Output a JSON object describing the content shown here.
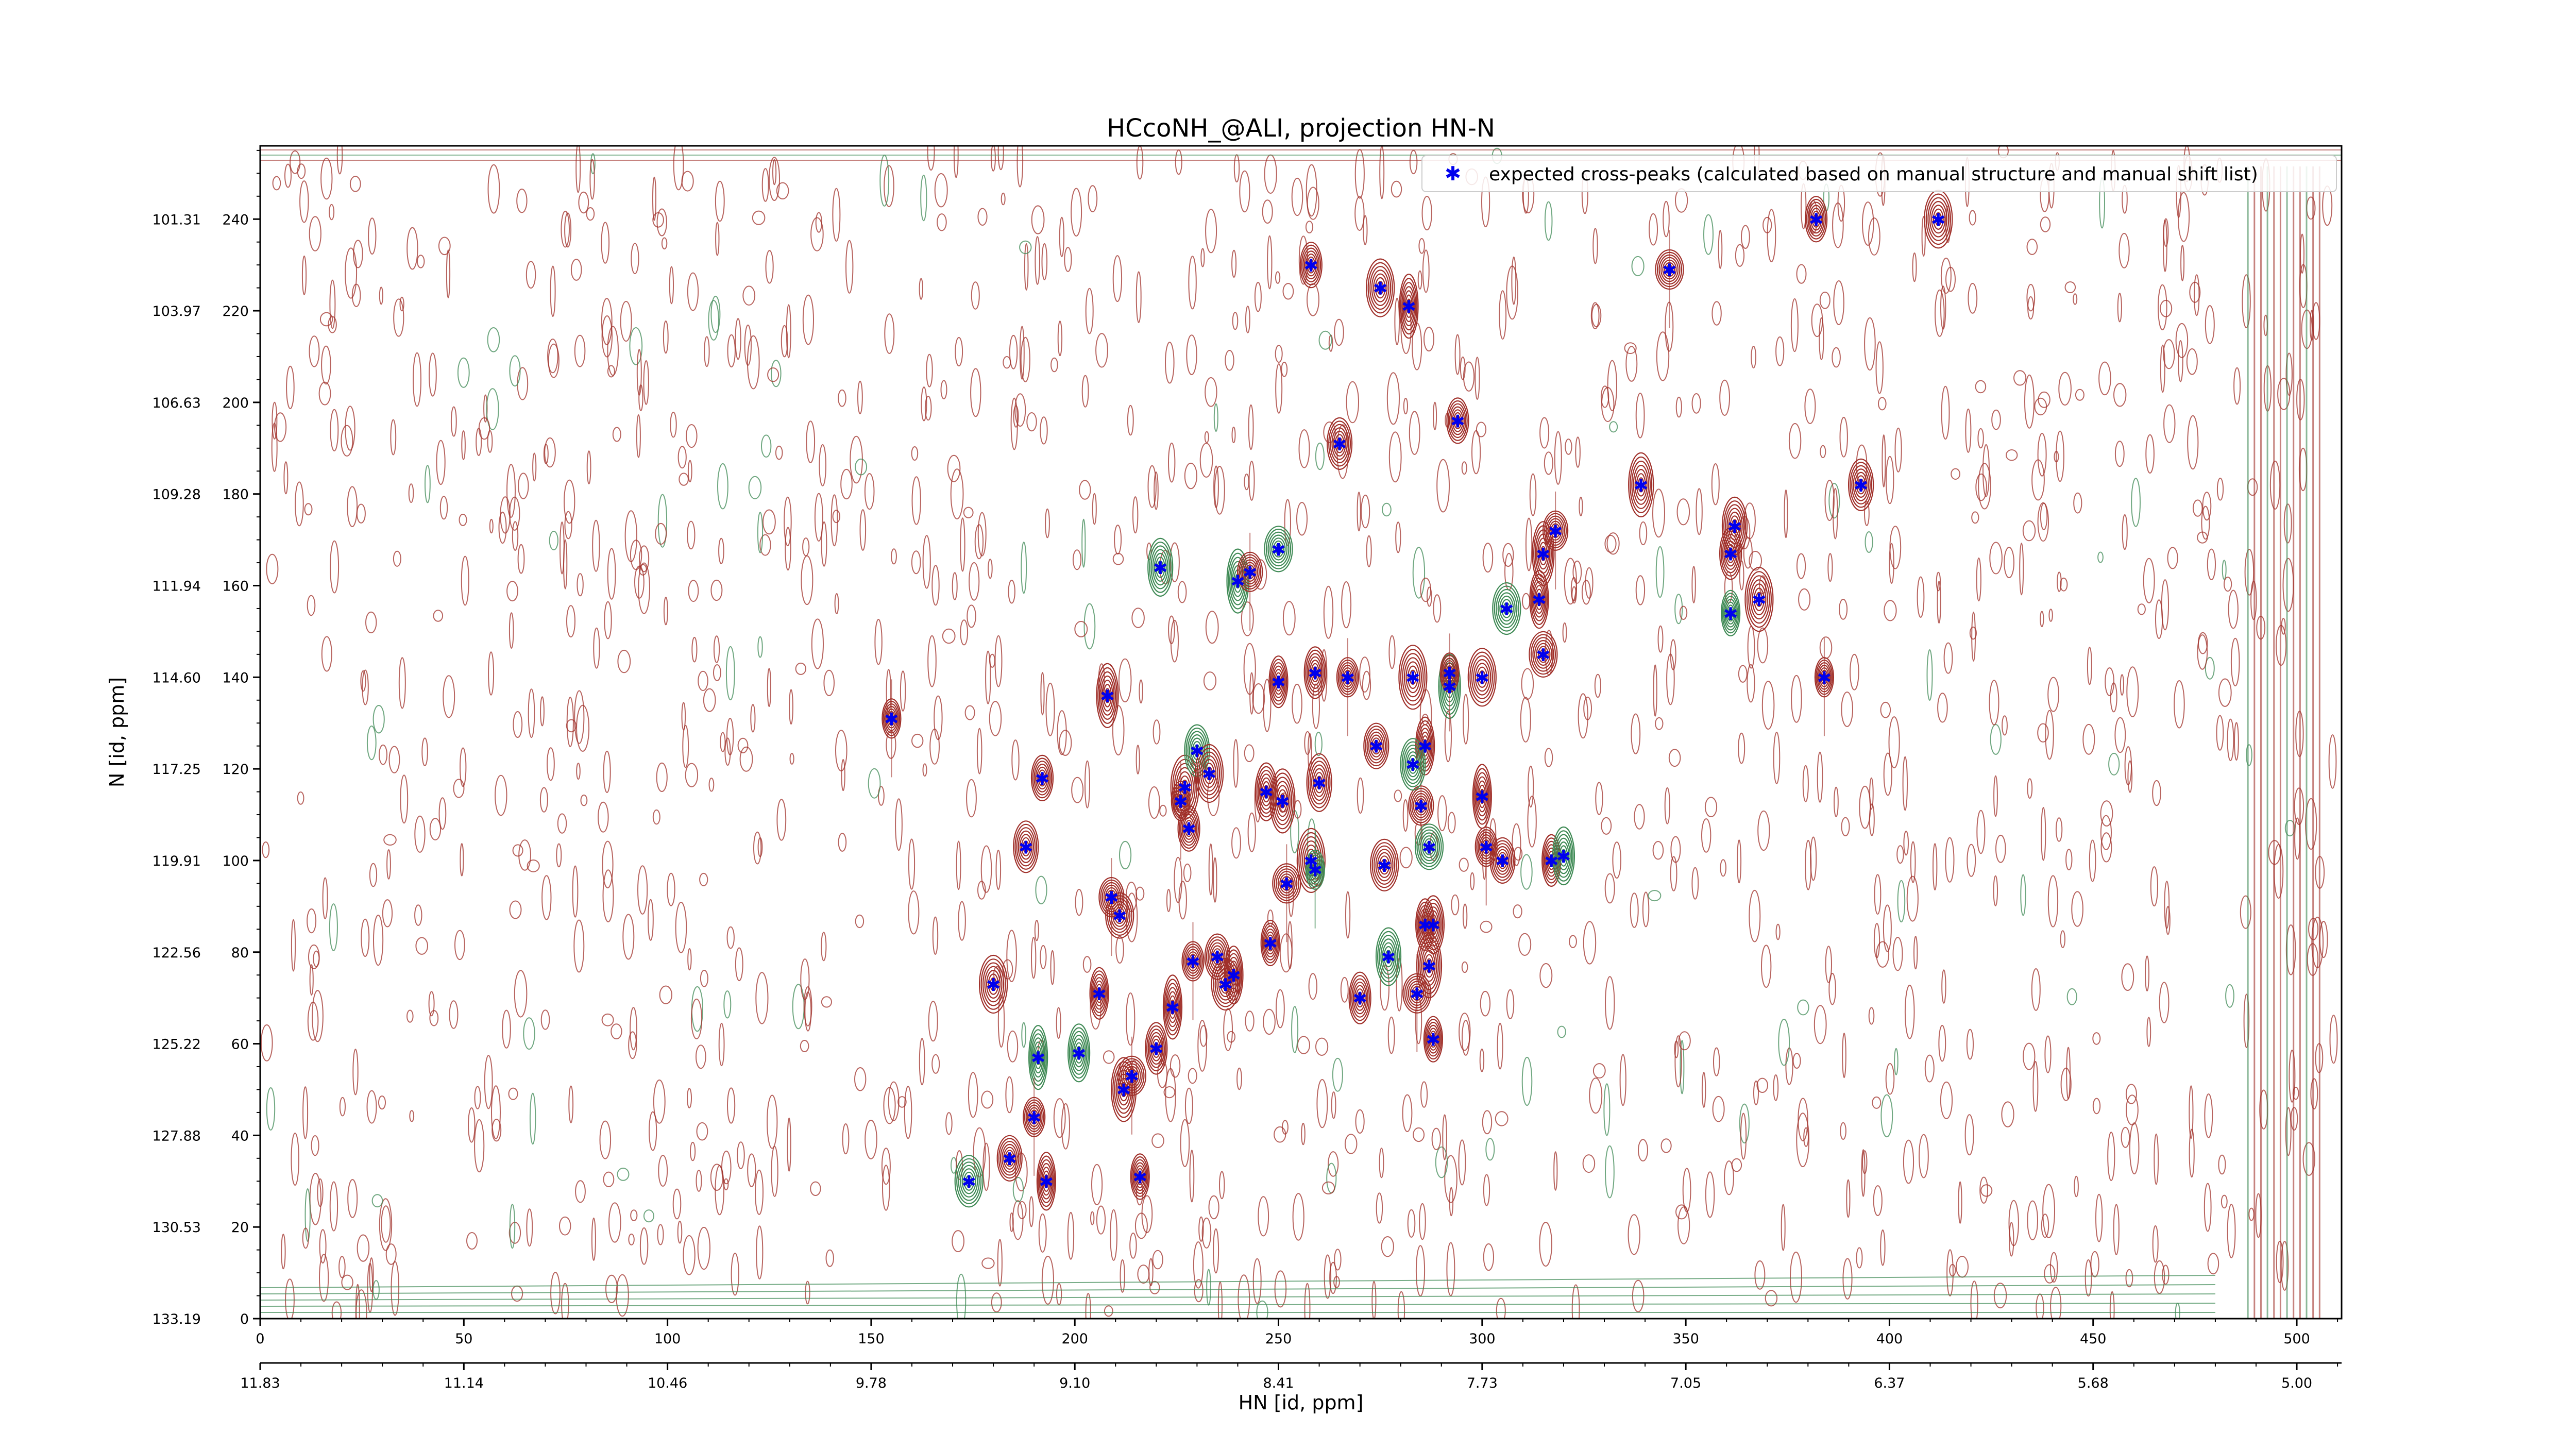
{
  "chart_data": {
    "type": "scatter",
    "title": "HCcoNH_@ALI, projection HN-N",
    "xlabel": "HN [id, ppm]",
    "ylabel": "N [id, ppm]",
    "xlim": [
      0,
      511
    ],
    "ylim": [
      0,
      256
    ],
    "grid": false,
    "legend_position": "top-right",
    "x_ticks": [
      0,
      50,
      100,
      150,
      200,
      250,
      300,
      350,
      400,
      450,
      500
    ],
    "x_tick_labels": [
      "0",
      "50",
      "100",
      "150",
      "200",
      "250",
      "300",
      "350",
      "400",
      "450",
      "500"
    ],
    "y_ticks": [
      0,
      20,
      40,
      60,
      80,
      100,
      120,
      140,
      160,
      180,
      200,
      220,
      240
    ],
    "y_tick_labels": [
      "0",
      "20",
      "40",
      "60",
      "80",
      "100",
      "120",
      "140",
      "160",
      "180",
      "200",
      "220",
      "240"
    ],
    "ppm_x_tick_labels": [
      "11.83",
      "11.14",
      "10.46",
      "9.78",
      "9.10",
      "8.41",
      "7.73",
      "7.05",
      "6.37",
      "5.68",
      "5.00"
    ],
    "ppm_y_tick_labels": [
      "133.19",
      "130.53",
      "127.88",
      "125.22",
      "122.56",
      "119.91",
      "117.25",
      "114.60",
      "111.94",
      "109.28",
      "106.63",
      "103.97",
      "101.31"
    ],
    "colors": {
      "contour_positive": "#a0302a",
      "contour_negative": "#3f8a55",
      "peak_marker": "#0000ee"
    },
    "series": [
      {
        "name": "expected cross-peaks (calculated based on manual structure and manual shift list)",
        "points": [
          [
            155,
            131
          ],
          [
            192,
            118
          ],
          [
            188,
            103
          ],
          [
            180,
            73
          ],
          [
            191,
            57
          ],
          [
            190,
            44
          ],
          [
            184,
            35
          ],
          [
            174,
            30
          ],
          [
            193,
            30
          ],
          [
            208,
            136
          ],
          [
            209,
            92
          ],
          [
            211,
            88
          ],
          [
            206,
            71
          ],
          [
            201,
            58
          ],
          [
            212,
            50
          ],
          [
            214,
            53
          ],
          [
            216,
            31
          ],
          [
            220,
            59
          ],
          [
            221,
            164
          ],
          [
            227,
            116
          ],
          [
            226,
            113
          ],
          [
            228,
            107
          ],
          [
            230,
            124
          ],
          [
            233,
            119
          ],
          [
            224,
            68
          ],
          [
            229,
            78
          ],
          [
            235,
            79
          ],
          [
            237,
            73
          ],
          [
            239,
            75
          ],
          [
            240,
            161
          ],
          [
            243,
            163
          ],
          [
            250,
            168
          ],
          [
            250,
            139
          ],
          [
            247,
            115
          ],
          [
            251,
            113
          ],
          [
            252,
            95
          ],
          [
            248,
            82
          ],
          [
            259,
            141
          ],
          [
            260,
            117
          ],
          [
            258,
            100
          ],
          [
            259,
            98
          ],
          [
            258,
            230
          ],
          [
            265,
            191
          ],
          [
            275,
            225
          ],
          [
            282,
            221
          ],
          [
            267,
            140
          ],
          [
            274,
            125
          ],
          [
            276,
            99
          ],
          [
            286,
            125
          ],
          [
            292,
            138
          ],
          [
            285,
            112
          ],
          [
            287,
            103
          ],
          [
            286,
            86
          ],
          [
            288,
            86
          ],
          [
            287,
            77
          ],
          [
            284,
            71
          ],
          [
            288,
            61
          ],
          [
            270,
            70
          ],
          [
            277,
            79
          ],
          [
            283,
            140
          ],
          [
            292,
            141
          ],
          [
            294,
            196
          ],
          [
            283,
            121
          ],
          [
            300,
            140
          ],
          [
            300,
            114
          ],
          [
            301,
            103
          ],
          [
            305,
            100
          ],
          [
            306,
            155
          ],
          [
            314,
            157
          ],
          [
            315,
            167
          ],
          [
            318,
            172
          ],
          [
            315,
            145
          ],
          [
            317,
            100
          ],
          [
            320,
            101
          ],
          [
            339,
            182
          ],
          [
            346,
            229
          ],
          [
            361,
            154
          ],
          [
            361,
            167
          ],
          [
            362,
            173
          ],
          [
            368,
            157
          ],
          [
            384,
            140
          ],
          [
            382,
            240
          ],
          [
            393,
            182
          ],
          [
            412,
            240
          ]
        ]
      }
    ]
  }
}
